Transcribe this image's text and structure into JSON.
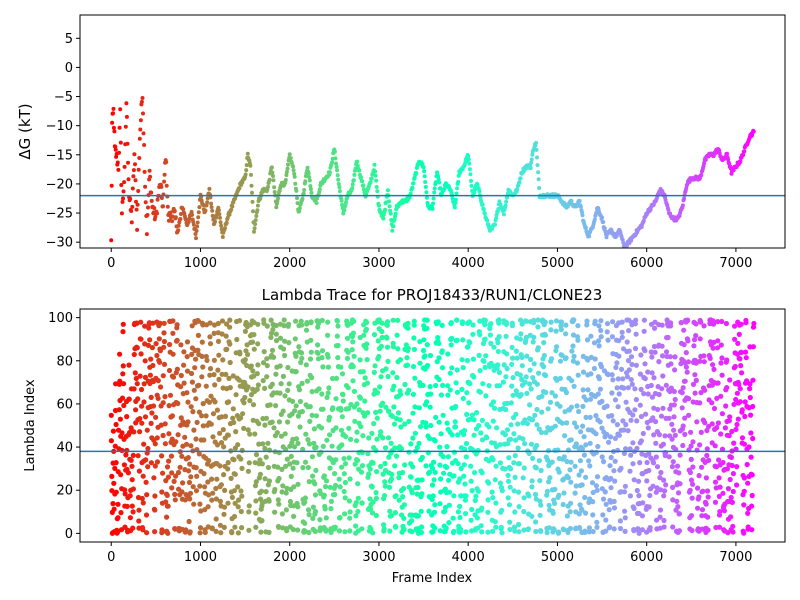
{
  "chart_data": [
    {
      "type": "scatter",
      "title": "",
      "xlabel": "",
      "ylabel": "ΔG (kT)",
      "xlim": [
        -350,
        7550
      ],
      "ylim": [
        -31,
        9
      ],
      "xticks": [
        0,
        1000,
        2000,
        3000,
        4000,
        5000,
        6000,
        7000
      ],
      "yticks": [
        -30,
        -25,
        -20,
        -15,
        -10,
        -5,
        0,
        5
      ],
      "hline": -22,
      "hline_color": "#1f77b4",
      "colormap": "rainbow (red at frame 0 → violet at later frames)",
      "marker_size": 2,
      "grid": false,
      "legend": "none",
      "series": [
        {
          "points": [
            [
              0,
              -30
            ],
            [
              10,
              -9.8
            ],
            [
              25,
              -7.5
            ],
            [
              40,
              -14
            ],
            [
              55,
              -15
            ],
            [
              80,
              -17
            ],
            [
              100,
              -8
            ],
            [
              120,
              -25
            ],
            [
              150,
              -18
            ],
            [
              170,
              -6
            ],
            [
              200,
              -22
            ],
            [
              230,
              -26
            ],
            [
              260,
              -15
            ],
            [
              290,
              -27
            ],
            [
              320,
              -12
            ],
            [
              350,
              -4.2
            ],
            [
              380,
              -20
            ],
            [
              400,
              -28
            ],
            [
              430,
              -18
            ],
            [
              460,
              -24
            ],
            [
              500,
              -26
            ],
            [
              520,
              -23
            ],
            [
              550,
              -20
            ],
            [
              580,
              -24
            ],
            [
              610,
              -15
            ],
            [
              640,
              -26
            ],
            [
              700,
              -25
            ],
            [
              750,
              -28
            ],
            [
              800,
              -24
            ],
            [
              850,
              -27
            ],
            [
              900,
              -25
            ],
            [
              950,
              -29
            ],
            [
              1000,
              -22
            ],
            [
              1050,
              -25
            ],
            [
              1100,
              -21
            ],
            [
              1150,
              -27
            ],
            [
              1200,
              -24
            ],
            [
              1250,
              -29
            ],
            [
              1300,
              -26
            ],
            [
              1350,
              -24
            ],
            [
              1400,
              -22
            ],
            [
              1450,
              -20
            ],
            [
              1500,
              -19
            ],
            [
              1530,
              -15
            ],
            [
              1560,
              -17
            ],
            [
              1600,
              -28
            ],
            [
              1650,
              -23
            ],
            [
              1700,
              -21
            ],
            [
              1750,
              -21
            ],
            [
              1800,
              -17
            ],
            [
              1850,
              -24
            ],
            [
              1900,
              -20
            ],
            [
              1950,
              -20
            ],
            [
              2000,
              -15
            ],
            [
              2050,
              -18
            ],
            [
              2100,
              -25
            ],
            [
              2150,
              -22
            ],
            [
              2200,
              -17
            ],
            [
              2250,
              -22
            ],
            [
              2300,
              -23
            ],
            [
              2350,
              -20
            ],
            [
              2400,
              -19
            ],
            [
              2450,
              -18
            ],
            [
              2500,
              -14
            ],
            [
              2550,
              -20
            ],
            [
              2600,
              -25
            ],
            [
              2650,
              -22
            ],
            [
              2700,
              -21
            ],
            [
              2750,
              -16
            ],
            [
              2800,
              -19
            ],
            [
              2850,
              -22
            ],
            [
              2900,
              -20
            ],
            [
              2950,
              -17
            ],
            [
              3000,
              -24
            ],
            [
              3050,
              -26
            ],
            [
              3100,
              -21
            ],
            [
              3150,
              -28
            ],
            [
              3200,
              -24
            ],
            [
              3250,
              -23
            ],
            [
              3300,
              -23
            ],
            [
              3350,
              -22
            ],
            [
              3400,
              -19
            ],
            [
              3450,
              -16
            ],
            [
              3500,
              -17
            ],
            [
              3550,
              -24
            ],
            [
              3600,
              -24
            ],
            [
              3650,
              -18
            ],
            [
              3700,
              -22
            ],
            [
              3750,
              -20
            ],
            [
              3800,
              -21
            ],
            [
              3850,
              -24
            ],
            [
              3900,
              -18
            ],
            [
              3950,
              -17
            ],
            [
              4000,
              -15
            ],
            [
              4050,
              -22
            ],
            [
              4100,
              -20
            ],
            [
              4150,
              -23
            ],
            [
              4200,
              -26
            ],
            [
              4250,
              -28
            ],
            [
              4300,
              -27
            ],
            [
              4350,
              -23
            ],
            [
              4400,
              -25
            ],
            [
              4450,
              -21
            ],
            [
              4500,
              -22
            ],
            [
              4550,
              -21
            ],
            [
              4600,
              -18
            ],
            [
              4650,
              -17
            ],
            [
              4700,
              -17
            ],
            [
              4730,
              -14
            ],
            [
              4760,
              -13
            ],
            [
              4800,
              -22
            ],
            [
              4900,
              -22
            ],
            [
              5000,
              -22
            ],
            [
              5050,
              -23
            ],
            [
              5100,
              -24
            ],
            [
              5150,
              -23
            ],
            [
              5200,
              -24
            ],
            [
              5250,
              -23
            ],
            [
              5300,
              -27
            ],
            [
              5350,
              -29
            ],
            [
              5400,
              -27
            ],
            [
              5450,
              -24
            ],
            [
              5500,
              -26
            ],
            [
              5550,
              -29
            ],
            [
              5600,
              -28
            ],
            [
              5650,
              -29
            ],
            [
              5700,
              -28
            ],
            [
              5750,
              -31
            ],
            [
              5800,
              -30
            ],
            [
              5850,
              -29
            ],
            [
              5900,
              -28
            ],
            [
              5950,
              -27
            ],
            [
              6000,
              -25
            ],
            [
              6050,
              -24
            ],
            [
              6100,
              -23
            ],
            [
              6150,
              -21
            ],
            [
              6200,
              -22
            ],
            [
              6250,
              -25
            ],
            [
              6300,
              -26
            ],
            [
              6350,
              -26
            ],
            [
              6400,
              -24
            ],
            [
              6450,
              -20
            ],
            [
              6500,
              -19
            ],
            [
              6550,
              -19
            ],
            [
              6600,
              -19
            ],
            [
              6650,
              -16
            ],
            [
              6700,
              -15
            ],
            [
              6750,
              -15
            ],
            [
              6800,
              -14
            ],
            [
              6850,
              -16
            ],
            [
              6900,
              -15
            ],
            [
              6950,
              -18
            ],
            [
              7000,
              -17
            ],
            [
              7050,
              -16
            ],
            [
              7100,
              -14
            ],
            [
              7150,
              -12
            ],
            [
              7200,
              -11
            ]
          ]
        }
      ]
    },
    {
      "type": "scatter",
      "title": "Lambda Trace for PROJ18433/RUN1/CLONE23",
      "xlabel": "Frame Index",
      "ylabel": "Lambda Index",
      "xlim": [
        -350,
        7550
      ],
      "ylim": [
        -4,
        104
      ],
      "xticks": [
        0,
        1000,
        2000,
        3000,
        4000,
        5000,
        6000,
        7000
      ],
      "yticks": [
        0,
        20,
        40,
        60,
        80,
        100
      ],
      "hline": 38,
      "hline_color": "#1f77b4",
      "colormap": "rainbow (red at frame 0 → violet at later frames)",
      "marker_size": 3,
      "grid": false,
      "legend": "none",
      "series": [
        {
          "x_range": [
            0,
            7200
          ],
          "y_range": [
            0,
            99
          ],
          "n_points": 2600,
          "description": "lambda index vs frame; dense vertical sweeps between ~0 and ~99"
        }
      ]
    }
  ]
}
